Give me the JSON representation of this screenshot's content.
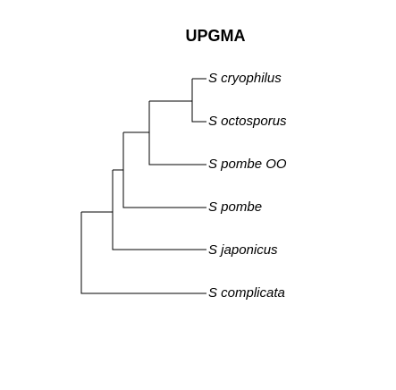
{
  "title": "UPGMA",
  "tree": {
    "method": "UPGMA",
    "leaves": [
      {
        "id": "s_cryophilus",
        "label": "S cryophilus"
      },
      {
        "id": "s_octosporus",
        "label": "S octosporus"
      },
      {
        "id": "s_pombe_oo",
        "label": "S pombe OO"
      },
      {
        "id": "s_pombe",
        "label": "S pombe"
      },
      {
        "id": "s_japonicus",
        "label": "S japonicus"
      },
      {
        "id": "s_complicata",
        "label": "S complicata"
      }
    ],
    "topology": "((((S cryophilus,S octosporus),S pombe OO),S pombe),S japonicus),S complicata"
  }
}
